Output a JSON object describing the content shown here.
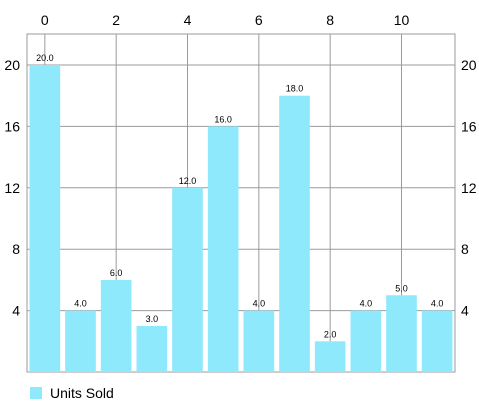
{
  "chart_data": {
    "type": "bar",
    "categories": [
      0,
      1,
      2,
      3,
      4,
      5,
      6,
      7,
      8,
      9,
      10,
      11
    ],
    "series": [
      {
        "name": "Units Sold",
        "values": [
          20.0,
          4.0,
          6.0,
          3.0,
          12.0,
          16.0,
          4.0,
          18.0,
          2.0,
          4.0,
          5.0,
          4.0
        ],
        "data_labels": [
          "20.0",
          "4.0",
          "6.0",
          "3.0",
          "12.0",
          "16.0",
          "4.0",
          "18.0",
          "2.0",
          "4.0",
          "5.0",
          "4.0"
        ]
      }
    ],
    "x_ticks": [
      0,
      2,
      4,
      6,
      8,
      10
    ],
    "x_axis_position": "top",
    "y_ticks": [
      4,
      8,
      12,
      16,
      20
    ],
    "ylim": [
      0,
      20
    ],
    "y_axis_position": "left-and-right",
    "grid": true,
    "legend": "bottom-left",
    "title": "",
    "xlabel": "",
    "ylabel": ""
  },
  "colors": {
    "bar": "#8fe9fd",
    "grid": "#9b9b9b",
    "text": "#000000"
  }
}
